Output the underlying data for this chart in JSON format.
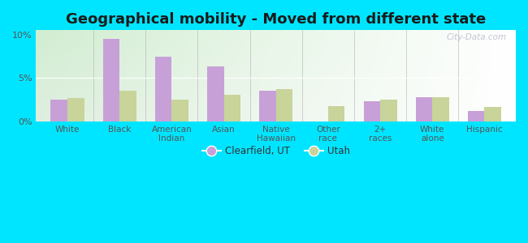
{
  "title": "Geographical mobility - Moved from different state",
  "categories": [
    "White",
    "Black",
    "American\nIndian",
    "Asian",
    "Native\nHawaiian",
    "Other\nrace",
    "2+\nraces",
    "White\nalone",
    "Hispanic"
  ],
  "clearfield_values": [
    2.5,
    9.5,
    7.5,
    6.3,
    3.5,
    0.0,
    2.3,
    2.8,
    1.2
  ],
  "utah_values": [
    2.7,
    3.5,
    2.5,
    3.1,
    3.7,
    1.8,
    2.5,
    2.8,
    1.7
  ],
  "clearfield_color": "#c8a0d8",
  "utah_color": "#c8d49a",
  "background_color_outer": "#00e5ff",
  "ylim": [
    0,
    10.5
  ],
  "yticks": [
    0,
    5,
    10
  ],
  "ytick_labels": [
    "0%",
    "5%",
    "10%"
  ],
  "legend_clearfield": "Clearfield, UT",
  "legend_utah": "Utah",
  "bar_width": 0.32,
  "title_fontsize": 13,
  "watermark": "City-Data.com"
}
